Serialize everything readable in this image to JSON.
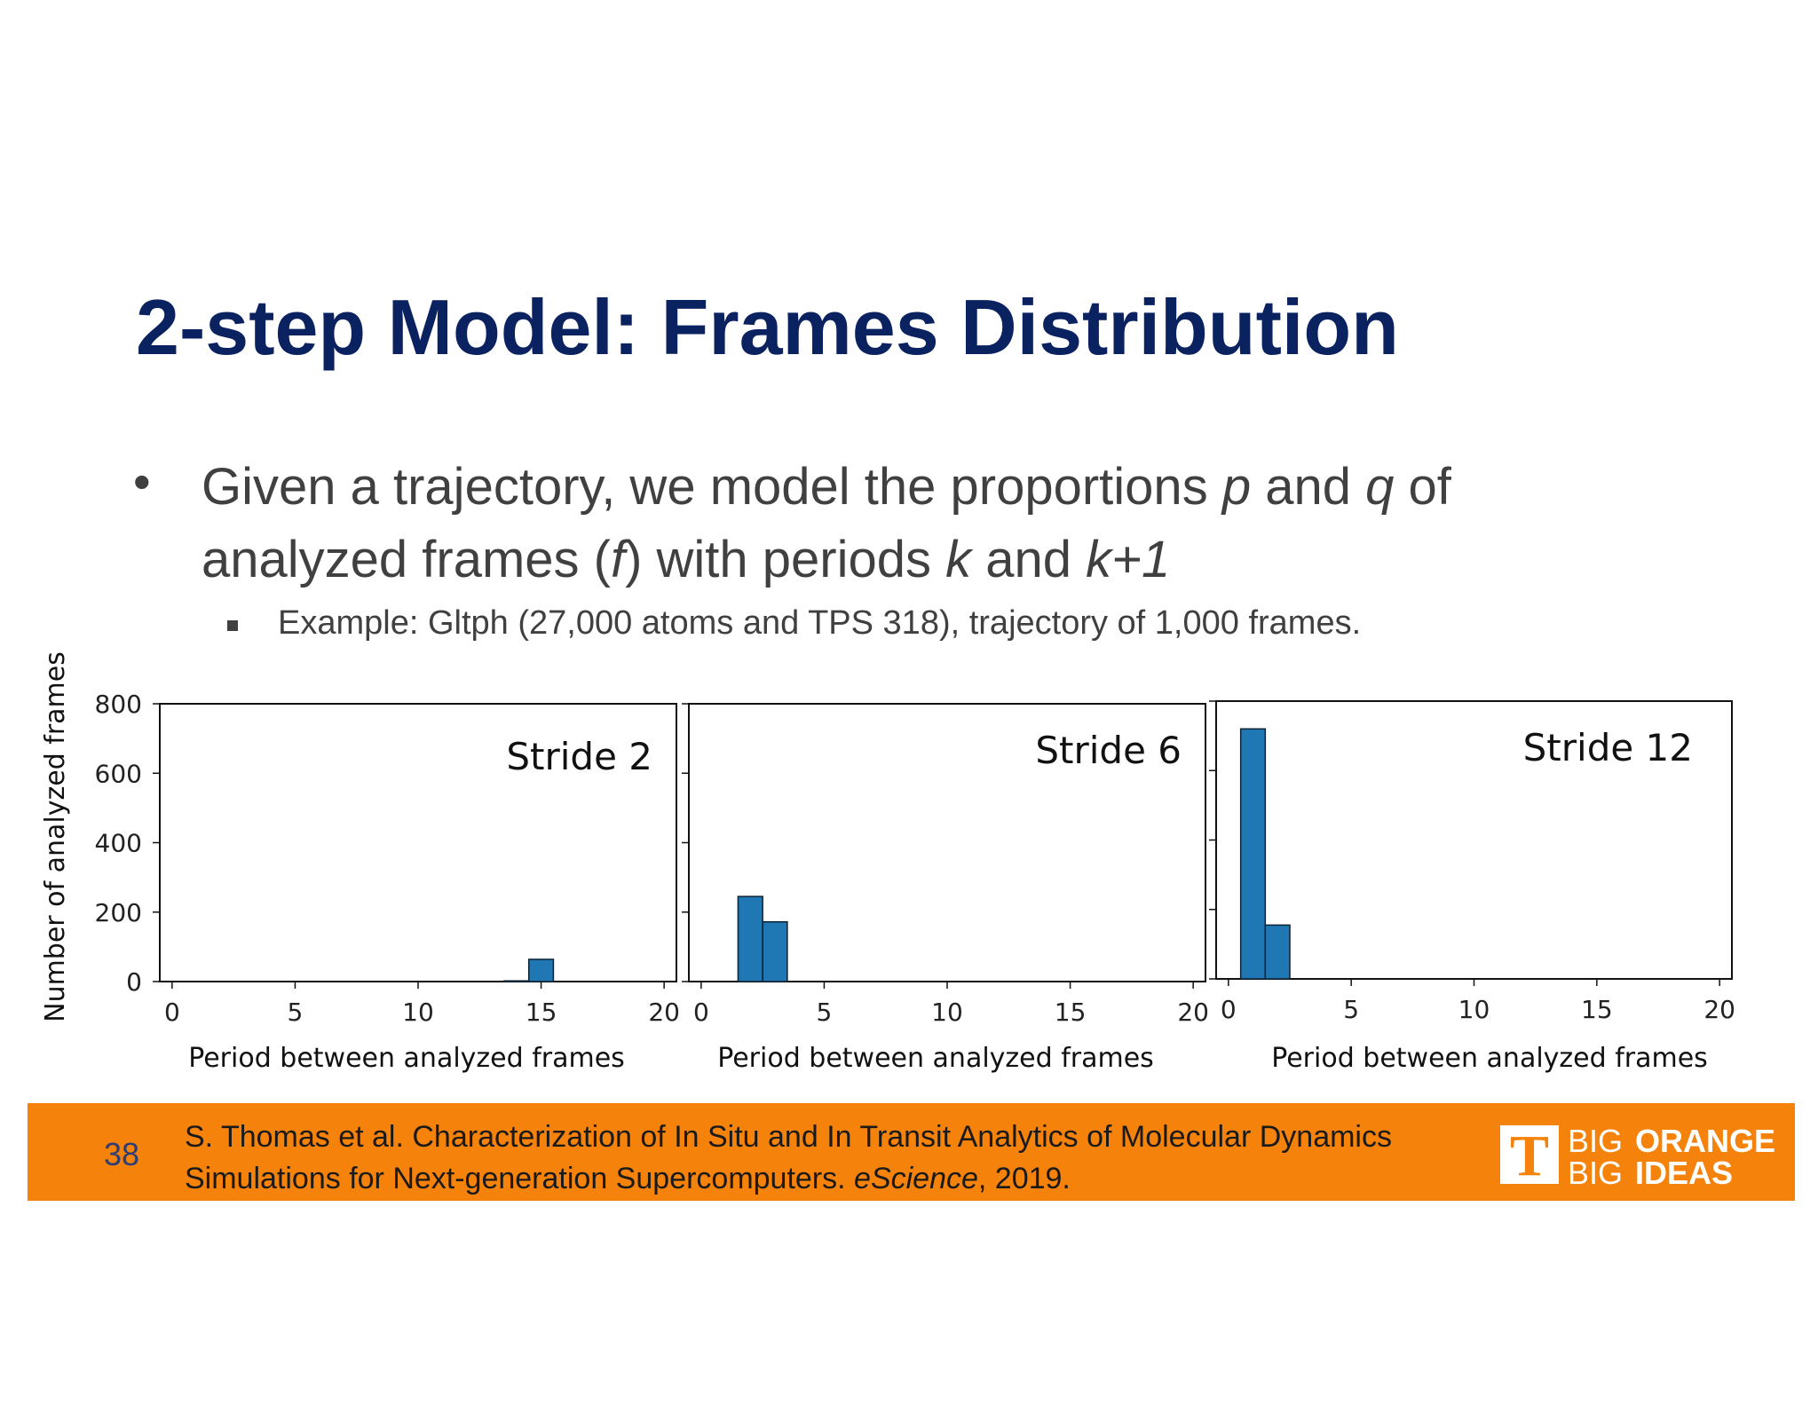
{
  "slide": {
    "title": "2-step Model: Frames Distribution",
    "bullet": {
      "text_1": "Given a trajectory, we model the proportions ",
      "var_p": "p",
      "text_2": " and ",
      "var_q": "q",
      "text_3": " of analyzed frames (",
      "var_f": "f",
      "text_4": ") with periods ",
      "var_k": "k",
      "text_5": " and ",
      "var_k1": "k+1"
    },
    "sub_bullet": "Example: Gltph (27,000 atoms and TPS 318), trajectory of 1,000 frames.",
    "page_number": "38",
    "citation": {
      "line1": "S. Thomas et al.  Characterization of In Situ and In Transit Analytics of Molecular Dynamics",
      "line2_a": "Simulations for Next-generation Supercomputers. ",
      "line2_italic": "eScience",
      "line2_b": ", 2019."
    },
    "logo": {
      "big1": "BIG",
      "orange": "ORANGE",
      "big2": "BIG",
      "ideas": "IDEAS",
      "t": "T"
    },
    "colors": {
      "title": "#0b2260",
      "footer": "#f5820a",
      "bar": "#1f77b4",
      "text": "#404040"
    }
  },
  "chart_data": [
    {
      "type": "bar",
      "annotation": "Stride 2",
      "xlabel": "Period between analyzed frames",
      "ylabel": "Number of analyzed frames",
      "xlim": [
        -0.5,
        20.5
      ],
      "ylim": [
        0,
        800
      ],
      "xticks": [
        0,
        5,
        10,
        15,
        20
      ],
      "yticks": [
        0,
        200,
        400,
        600,
        800
      ],
      "bins": [
        {
          "x0": 13.5,
          "x1": 14.5,
          "value": 2
        },
        {
          "x0": 14.5,
          "x1": 15.5,
          "value": 64
        }
      ]
    },
    {
      "type": "bar",
      "annotation": "Stride 6",
      "xlabel": "Period between analyzed frames",
      "xlim": [
        -0.5,
        20.5
      ],
      "ylim": [
        0,
        800
      ],
      "xticks": [
        0,
        5,
        10,
        15,
        20
      ],
      "bins": [
        {
          "x0": 1.5,
          "x1": 2.5,
          "value": 245
        },
        {
          "x0": 2.5,
          "x1": 3.5,
          "value": 172
        }
      ]
    },
    {
      "type": "bar",
      "annotation": "Stride 12",
      "xlabel": "Period between analyzed frames",
      "xlim": [
        -0.5,
        20.5
      ],
      "ylim": [
        0,
        800
      ],
      "xticks": [
        0,
        5,
        10,
        15,
        20
      ],
      "bins": [
        {
          "x0": 0.5,
          "x1": 1.5,
          "value": 720
        },
        {
          "x0": 1.5,
          "x1": 2.5,
          "value": 155
        }
      ]
    }
  ]
}
